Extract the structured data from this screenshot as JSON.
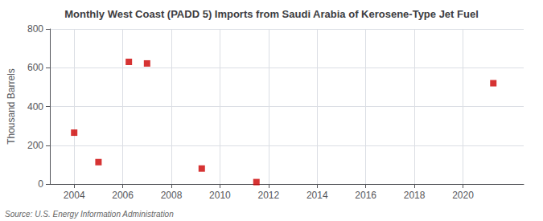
{
  "chart_data": {
    "type": "scatter",
    "title": "Monthly West Coast (PADD 5) Imports from Saudi Arabia of Kerosene-Type Jet Fuel",
    "ylabel": "Thousand Barrels",
    "source": "Source: U.S. Energy Information Administration",
    "x": [
      2004.0,
      2005.0,
      2006.25,
      2007.0,
      2009.25,
      2011.5,
      2021.25
    ],
    "values": [
      265,
      113,
      630,
      622,
      80,
      10,
      520
    ],
    "color": "#cc0000",
    "marker": "square",
    "xlim": [
      2003.0,
      2022.5
    ],
    "xticks": [
      2004,
      2006,
      2008,
      2010,
      2012,
      2014,
      2016,
      2018,
      2020
    ],
    "ylim": [
      0,
      800
    ],
    "yticks": [
      0,
      200,
      400,
      600,
      800
    ],
    "grid": true
  }
}
